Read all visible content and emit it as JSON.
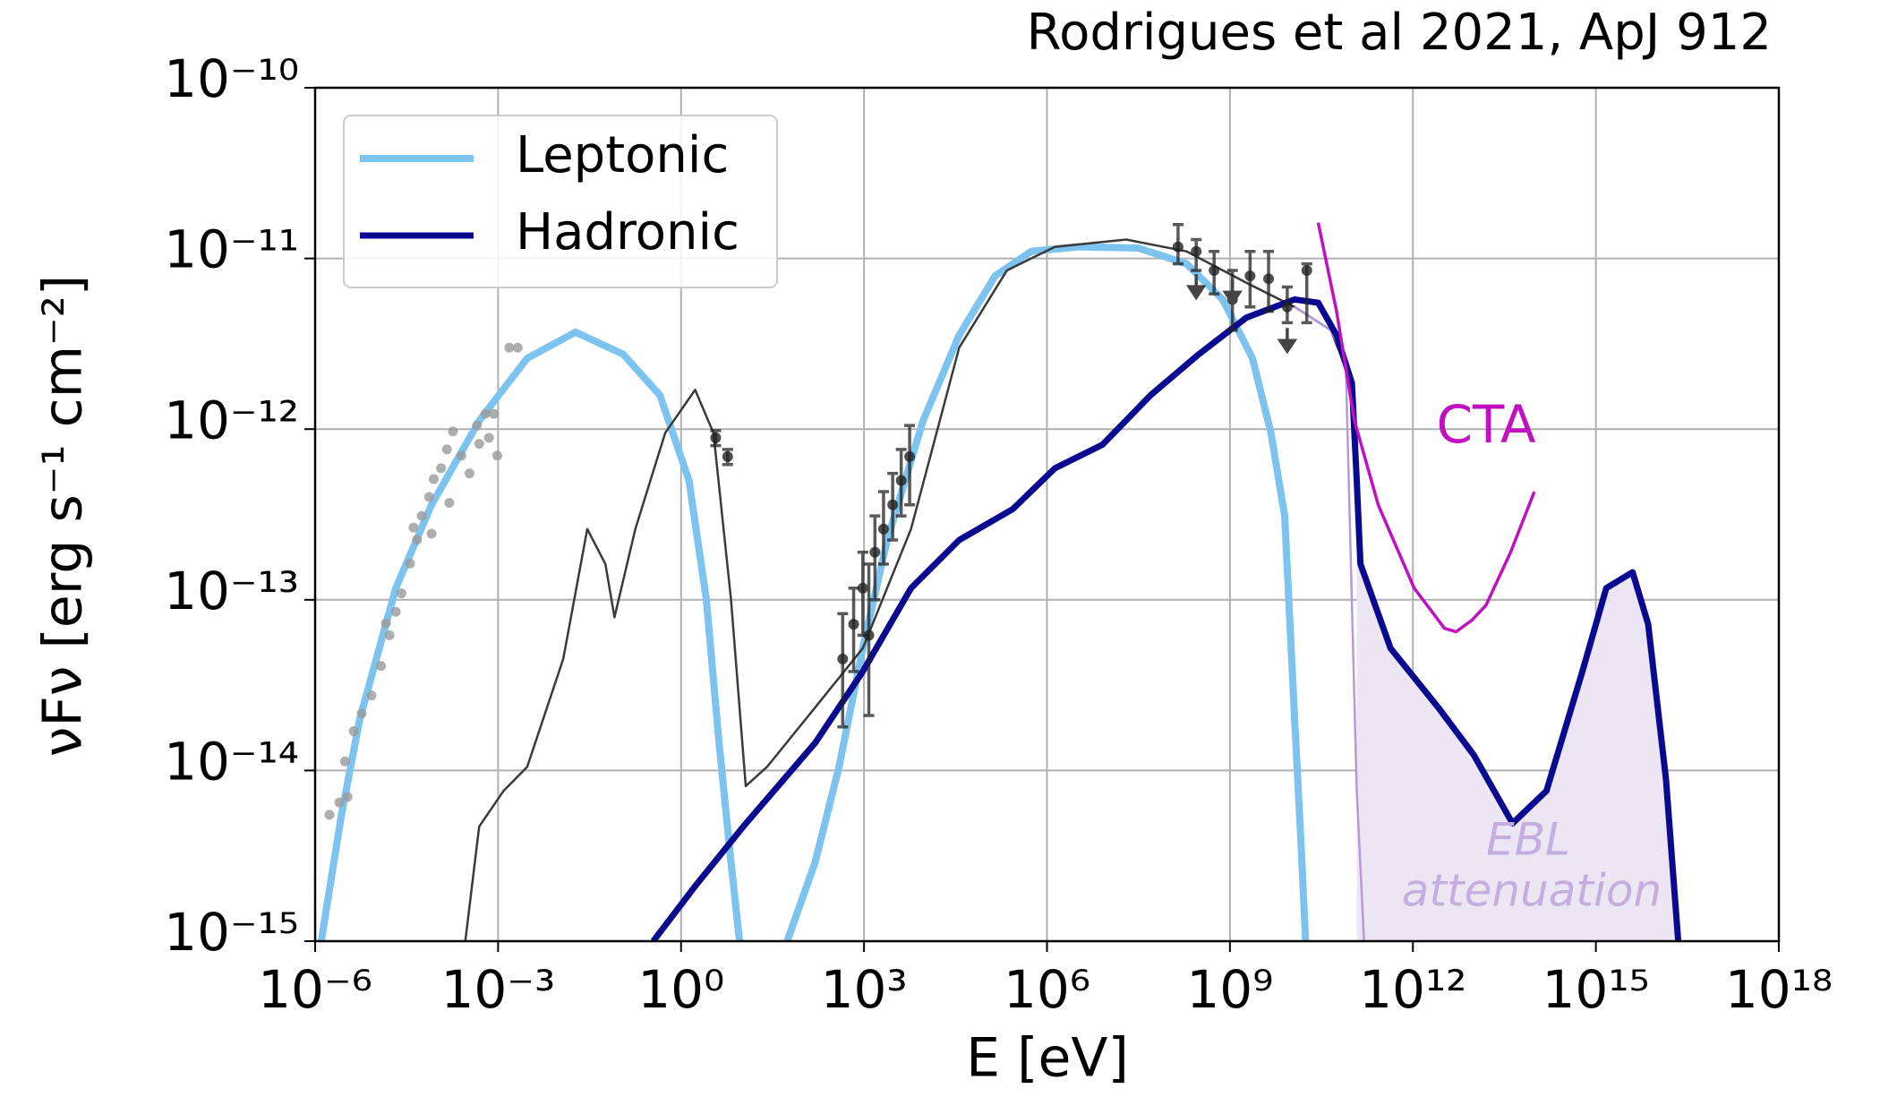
{
  "chart_data": {
    "type": "line",
    "xlabel": "E [eV]",
    "ylabel": "νFν [erg s⁻¹ cm⁻²]",
    "annotations": [
      "Rodrigues  et al 2021, ApJ 912",
      "CTA",
      "EBL",
      "attenuation"
    ],
    "xscale": "log",
    "yscale": "log",
    "xlim": [
      1e-06,
      1e+18
    ],
    "ylim": [
      1e-15,
      1e-10
    ],
    "xticks": [
      {
        "value": 1e-06,
        "label": "10⁻⁶"
      },
      {
        "value": 0.001,
        "label": "10⁻³"
      },
      {
        "value": 1,
        "label": "10⁰"
      },
      {
        "value": 1000.0,
        "label": "10³"
      },
      {
        "value": 1000000.0,
        "label": "10⁶"
      },
      {
        "value": 1000000000.0,
        "label": "10⁹"
      },
      {
        "value": 1000000000000.0,
        "label": "10¹²"
      },
      {
        "value": 1000000000000000.0,
        "label": "10¹⁵"
      },
      {
        "value": 1e+18,
        "label": "10¹⁸"
      }
    ],
    "yticks": [
      {
        "value": 1e-15,
        "label": "10⁻¹⁵"
      },
      {
        "value": 1e-14,
        "label": "10⁻¹⁴"
      },
      {
        "value": 1e-13,
        "label": "10⁻¹³"
      },
      {
        "value": 1e-12,
        "label": "10⁻¹²"
      },
      {
        "value": 1e-11,
        "label": "10⁻¹¹"
      },
      {
        "value": 1e-10,
        "label": "10⁻¹⁰"
      }
    ],
    "grid": true,
    "legend": "upper left",
    "series": [
      {
        "type": "area",
        "color": "#ece6f4",
        "x": [
          120000000000.0,
          138000000000.0,
          430000000000.0,
          2600000000000.0,
          10000000000000.0,
          43000000000000.0,
          155000000000000.0,
          600000000000000.0,
          1480000000000000.0,
          4000000000000000.0,
          7200000000000000.0,
          1.41e+16,
          2.24e+16
        ],
        "values": [
          5e-13,
          1.62e-13,
          5.2e-14,
          2.34e-14,
          1.23e-14,
          4.9e-15,
          7.6e-15,
          3.8e-14,
          1.17e-13,
          1.45e-13,
          7.2e-14,
          8.9e-15,
          1e-15
        ]
      },
      {
        "type": "line",
        "name": "Leptonic",
        "color": "#7cc4ef",
        "width": 8,
        "x": [
          1.26e-06,
          2.7e-06,
          5.4e-06,
          2.1e-05,
          8.1e-05,
          0.00049,
          0.003,
          0.0186,
          0.112,
          0.45,
          1.35,
          2.6,
          4.2,
          6.6,
          9.1,
          null,
          55,
          158,
          389,
          955,
          2400,
          9300,
          36300,
          141000.0,
          550000.0,
          3300000.0,
          31600000.0,
          195000000.0,
          760000000.0,
          2340000000.0,
          4700000000.0,
          7900000000.0,
          11500000000.0,
          14500000000.0,
          17400000000.0
        ],
        "values": [
          1e-15,
          5.5e-15,
          2e-14,
          1.17e-13,
          3.6e-13,
          1.12e-12,
          2.6e-12,
          3.7e-12,
          2.75e-12,
          1.58e-12,
          5e-13,
          1e-13,
          1.45e-14,
          2.9e-15,
          1e-15,
          null,
          1e-15,
          2.9e-15,
          1.05e-14,
          5.2e-14,
          2.24e-13,
          1.12e-12,
          3.55e-12,
          7.9e-12,
          1.1e-11,
          1.17e-11,
          1.15e-11,
          9.3e-12,
          5.75e-12,
          2.6e-12,
          9.5e-13,
          3.1e-13,
          2e-14,
          4e-15,
          1e-15
        ]
      },
      {
        "type": "line",
        "color": "#3a3a3a",
        "width": 2.5,
        "x": [
          0.00029,
          0.00049,
          0.00123,
          0.003,
          0.0117,
          0.029,
          0.0575,
          0.081,
          0.178,
          0.55,
          1.7,
          3.4,
          6.6,
          11.5,
          25.7,
          158,
          955,
          5900,
          36300,
          220000.0,
          1350000.0,
          20000000.0,
          195000000.0,
          1860000000.0,
          11500000000.0,
          45000000000.0,
          100000000000.0
        ],
        "values": [
          1e-15,
          4.7e-15,
          7.6e-15,
          1.05e-14,
          4.5e-14,
          2.6e-13,
          1.62e-13,
          7.9e-14,
          2.6e-13,
          9.5e-13,
          1.7e-12,
          9.5e-13,
          1e-13,
          8.1e-15,
          1.05e-14,
          2.34e-14,
          5.2e-14,
          2.6e-13,
          3e-12,
          8.5e-12,
          1.17e-11,
          1.29e-11,
          1.1e-11,
          7.2e-12,
          5.2e-12,
          3.8e-12,
          1.86e-12
        ]
      },
      {
        "type": "line",
        "color": "#b59ad8",
        "width": 2.5,
        "x": [
          11500000000.0,
          45000000000.0,
          79000000000.0,
          120000000000.0,
          158000000000.0
        ],
        "values": [
          5.2e-12,
          3.8e-12,
          2.5e-12,
          7.6e-15,
          1e-15
        ]
      },
      {
        "type": "line",
        "name": "Hadronic",
        "color": "#0a0a90",
        "width": 7,
        "x": [
          0.35,
          1.7,
          10.5,
          158,
          955,
          5900,
          36300,
          275000.0,
          1350000.0,
          8100000.0,
          50000000.0,
          310000000.0,
          1860000000.0,
          11500000000.0,
          28000000000.0,
          56000000000.0,
          100000000000.0,
          120000000000.0,
          138000000000.0,
          430000000000.0,
          2600000000000.0,
          10000000000000.0,
          43000000000000.0,
          155000000000000.0,
          600000000000000.0,
          1480000000000000.0,
          4000000000000000.0,
          7200000000000000.0,
          1.41e+16,
          2.24e+16
        ],
        "values": [
          1e-15,
          2.1e-15,
          4.7e-15,
          1.45e-14,
          3.8e-14,
          1.17e-13,
          2.24e-13,
          3.4e-13,
          5.9e-13,
          8.1e-13,
          1.58e-12,
          2.75e-12,
          4.5e-12,
          5.75e-12,
          5.5e-12,
          3.55e-12,
          1.86e-12,
          5e-13,
          1.62e-13,
          5.2e-14,
          2.34e-14,
          1.23e-14,
          4.9e-15,
          7.6e-15,
          3.8e-14,
          1.17e-13,
          1.45e-13,
          7.2e-14,
          8.9e-15,
          1e-15
        ]
      },
      {
        "type": "line",
        "color": "#c010c0",
        "width": 3.5,
        "x": [
          28000000000.0,
          56000000000.0,
          110000000000.0,
          270000000000.0,
          1050000000000.0,
          3300000000000.0,
          5100000000000.0,
          9300000000000.0,
          15800000000000.0,
          40000000000000.0,
          98000000000000.0
        ],
        "values": [
          1.62e-11,
          4.9e-12,
          1.12e-12,
          3.6e-13,
          1.17e-13,
          6.8e-14,
          6.5e-14,
          7.6e-14,
          9.3e-14,
          1.9e-13,
          4.3e-13
        ]
      },
      {
        "type": "scatter",
        "color": "#9a9a9a",
        "x": [
          1.72e-06,
          2.5e-06,
          3.1e-06,
          4.3e-06,
          5.8e-06,
          8.4e-06,
          1.2e-05,
          1.66e-05,
          2.1e-05,
          2.6e-05,
          3.6e-05,
          4.7e-05,
          5.6e-05,
          7.4e-05,
          8.8e-05,
          0.000116,
          0.000145,
          0.000182,
          0.00025,
          0.00034,
          0.00045,
          0.00062,
          0.00085,
          0.00097,
          0.00153,
          0.0021,
          3.4e-06,
          1.45e-05,
          4.1e-05,
          8.1e-05,
          0.000159,
          0.00049,
          0.00071
        ],
        "values": [
          5.5e-15,
          6.5e-15,
          1.13e-14,
          1.7e-14,
          2.16e-14,
          2.75e-14,
          4.1e-14,
          6.2e-14,
          8.5e-14,
          1.09e-13,
          1.63e-13,
          2.25e-13,
          3.1e-13,
          4e-13,
          5.1e-13,
          5.9e-13,
          7.6e-13,
          9.7e-13,
          7e-13,
          5.5e-13,
          1.05e-12,
          1.23e-12,
          1.23e-12,
          7e-13,
          3e-12,
          3e-12,
          7e-15,
          7.3e-14,
          2.65e-13,
          2.44e-13,
          3.7e-13,
          8.2e-13,
          8.9e-13
        ]
      },
      {
        "type": "errorbar",
        "color": "#222222",
        "x": [
          3.7,
          5.8,
          447,
          676,
          955,
          1200,
          1510,
          2090,
          2950,
          4070,
          5600,
          141000000.0,
          280000000.0,
          550000000.0,
          1100000000.0,
          2140000000.0,
          4300000000.0,
          8700000000.0,
          18200000000.0
        ],
        "values": [
          8.9e-13,
          6.9e-13,
          4.5e-14,
          7.2e-14,
          1.17e-13,
          6.2e-14,
          1.9e-13,
          2.6e-13,
          3.6e-13,
          5e-13,
          6.9e-13,
          1.17e-11,
          1.1e-11,
          8.5e-12,
          5.75e-12,
          7.9e-12,
          7.6e-12,
          5.2e-12,
          8.5e-12
        ],
        "lower": [
          8e-13,
          6.2e-13,
          1.8e-14,
          3.8e-14,
          6.2e-14,
          2.1e-14,
          1e-13,
          1.62e-13,
          2.24e-13,
          3.1e-13,
          3.6e-13,
          9.3e-12,
          8.5e-12,
          6.2e-12,
          3.8e-12,
          5.2e-12,
          4.9e-12,
          4.2e-12,
          4.2e-12
        ],
        "upper": [
          9.8e-13,
          7.6e-13,
          8.3e-14,
          1.17e-13,
          1.9e-13,
          1.62e-13,
          3.1e-13,
          4.3e-13,
          5.5e-13,
          7.6e-13,
          1.05e-12,
          1.58e-11,
          1.29e-11,
          1.1e-11,
          8.5e-12,
          1.1e-11,
          1.1e-11,
          6.8e-12,
          9.3e-12
        ]
      },
      {
        "type": "upper_limit",
        "color": "#444444",
        "x": [
          280000000.0,
          1100000000.0,
          8700000000.0
        ],
        "values": [
          6.2e-12,
          5.75e-12,
          3e-12
        ]
      }
    ]
  }
}
